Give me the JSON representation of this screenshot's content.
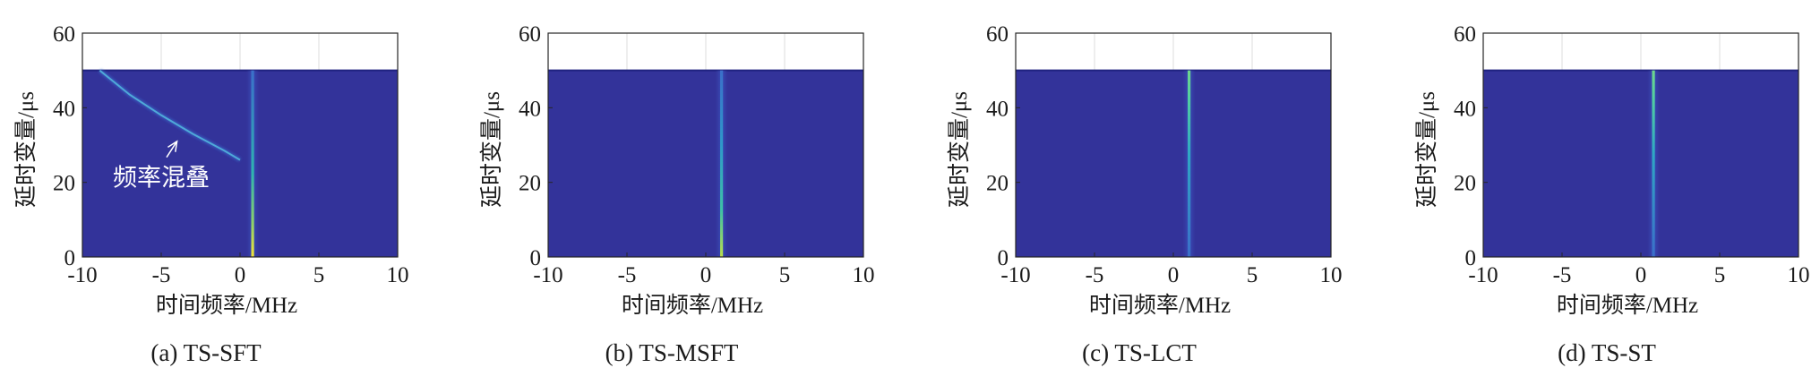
{
  "chart_data": [
    {
      "type": "heatmap",
      "panel": "(a)",
      "method": "TS-SFT",
      "caption": "(a)  TS-SFT",
      "xlabel": "时间频率/MHz",
      "ylabel": "延时变量/μs",
      "xlim": [
        -10,
        10
      ],
      "ylim": [
        0,
        60
      ],
      "xticks": [
        "-10",
        "-5",
        "0",
        "5",
        "10"
      ],
      "yticks": [
        "0",
        "20",
        "40",
        "60"
      ],
      "data_extent": {
        "x": [
          -10,
          10
        ],
        "y": [
          0,
          50
        ]
      },
      "grid": true,
      "background_color": "#33339a",
      "ridges": [
        {
          "x": [
            0.8,
            0.8
          ],
          "y": [
            0,
            50
          ],
          "peak_y": [
            0,
            10
          ]
        },
        {
          "x": [
            -8.9,
            -7,
            -5,
            -3,
            -1,
            0
          ],
          "y": [
            50,
            43.5,
            38,
            33,
            28.5,
            26
          ]
        }
      ],
      "annotation": {
        "text": "频率混叠",
        "xy": [
          -4,
          31
        ],
        "xytext": [
          -5,
          20
        ]
      }
    },
    {
      "type": "heatmap",
      "panel": "(b)",
      "method": "TS-MSFT",
      "caption": "(b)  TS-MSFT",
      "xlabel": "时间频率/MHz",
      "ylabel": "延时变量/μs",
      "xlim": [
        -10,
        10
      ],
      "ylim": [
        0,
        60
      ],
      "xticks": [
        "-10",
        "-5",
        "0",
        "5",
        "10"
      ],
      "yticks": [
        "0",
        "20",
        "40",
        "60"
      ],
      "data_extent": {
        "x": [
          -10,
          10
        ],
        "y": [
          0,
          50
        ]
      },
      "grid": true,
      "background_color": "#33339a",
      "ridges": [
        {
          "x": [
            1,
            1
          ],
          "y": [
            0,
            50
          ],
          "peak_y": [
            0,
            20
          ]
        }
      ]
    },
    {
      "type": "heatmap",
      "panel": "(c)",
      "method": "TS-LCT",
      "caption": "(c)  TS-LCT",
      "xlabel": "时间频率/MHz",
      "ylabel": "延时变量/μs",
      "xlim": [
        -10,
        10
      ],
      "ylim": [
        0,
        60
      ],
      "xticks": [
        "-10",
        "-5",
        "0",
        "5",
        "10"
      ],
      "yticks": [
        "0",
        "20",
        "40",
        "60"
      ],
      "data_extent": {
        "x": [
          -10,
          10
        ],
        "y": [
          0,
          50
        ]
      },
      "grid": true,
      "background_color": "#33339a",
      "ridges": [
        {
          "x": [
            1,
            1
          ],
          "y": [
            0,
            50
          ],
          "peak_y": [
            30,
            50
          ]
        }
      ]
    },
    {
      "type": "heatmap",
      "panel": "(d)",
      "method": "TS-ST",
      "caption": "(d)  TS-ST",
      "xlabel": "时间频率/MHz",
      "ylabel": "延时变量/μs",
      "xlim": [
        -10,
        10
      ],
      "ylim": [
        0,
        60
      ],
      "xticks": [
        "-10",
        "-5",
        "0",
        "5",
        "10"
      ],
      "yticks": [
        "0",
        "20",
        "40",
        "60"
      ],
      "data_extent": {
        "x": [
          -10,
          10
        ],
        "y": [
          0,
          50
        ]
      },
      "grid": true,
      "background_color": "#33339a",
      "ridges": [
        {
          "x": [
            0.8,
            0.8
          ],
          "y": [
            0,
            50
          ],
          "peak_y": [
            30,
            50
          ]
        }
      ]
    }
  ]
}
